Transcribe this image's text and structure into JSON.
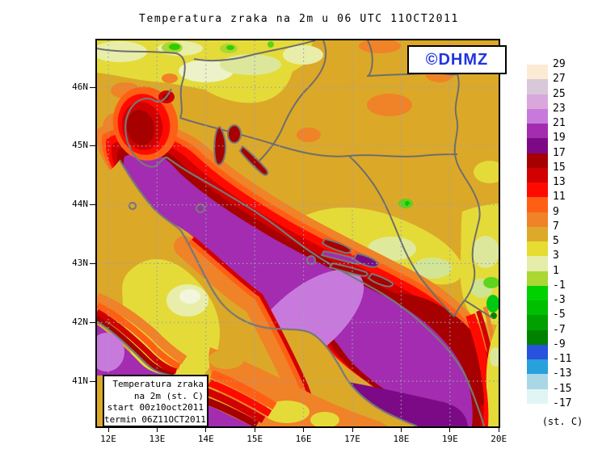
{
  "title": "Temperatura zraka na 2m u 06 UTC 11OCT2011",
  "badge": {
    "text": "©DHMZ"
  },
  "axes": {
    "x_labels": [
      "12E",
      "13E",
      "14E",
      "15E",
      "16E",
      "17E",
      "18E",
      "19E",
      "20E"
    ],
    "y_labels": [
      "46N",
      "45N",
      "44N",
      "43N",
      "42N",
      "41N"
    ]
  },
  "info_box": {
    "lines": [
      "Temperatura zraka",
      "na 2m (st. C)",
      "start 00z10oct2011",
      "termin 06Z11OCT2011"
    ]
  },
  "legend": {
    "unit": "(st. C)",
    "labels": [
      "29",
      "27",
      "25",
      "23",
      "21",
      "19",
      "17",
      "15",
      "13",
      "11",
      "9",
      "7",
      "5",
      "3",
      "1",
      "-1",
      "-3",
      "-5",
      "-7",
      "-9",
      "-11",
      "-13",
      "-15",
      "-17"
    ],
    "swatches": [
      "#FBEBD3",
      "#D8C8DA",
      "#DAA7DC",
      "#C87ADC",
      "#A32CB0",
      "#7C0A86",
      "#A60000",
      "#D20000",
      "#FF0A00",
      "#FF5F14",
      "#F08228",
      "#DCAA28",
      "#E6DC32",
      "#E6ECAA",
      "#AAD732",
      "#00D200",
      "#00BE00",
      "#00A000",
      "#008200",
      "#2851DC",
      "#28A0DC",
      "#AAD7E6",
      "#E1F5F5"
    ]
  },
  "colors": {
    "badge_blue": "#2135E0",
    "border_gray": "#6E6E6E",
    "coast_gray": "#787878",
    "grid_dots": "#98A0B8",
    "land_base": "#DCA828",
    "sea_purple": "#A32CB0"
  }
}
